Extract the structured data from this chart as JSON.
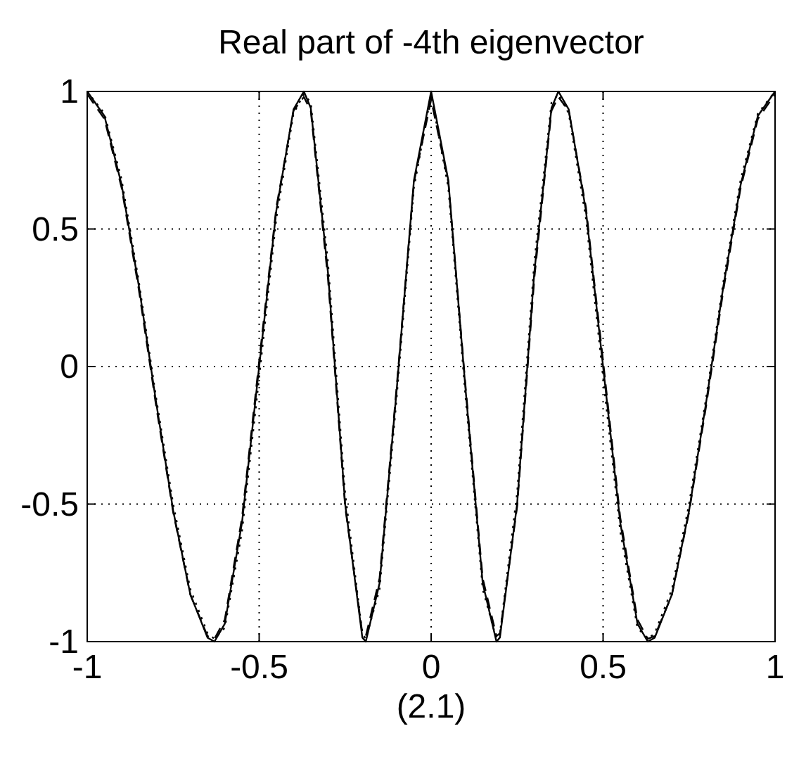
{
  "chart_data": {
    "type": "line",
    "title": "Real part of -4th eigenvector",
    "xlabel": "(2.1)",
    "x": [
      -1,
      -0.95,
      -0.9,
      -0.85,
      -0.8,
      -0.75,
      -0.7,
      -0.65,
      -0.63,
      -0.6,
      -0.55,
      -0.5,
      -0.45,
      -0.4,
      -0.37,
      -0.35,
      -0.3,
      -0.25,
      -0.2,
      -0.19,
      -0.15,
      -0.1,
      -0.05,
      0,
      0.05,
      0.1,
      0.15,
      0.19,
      0.2,
      0.25,
      0.3,
      0.35,
      0.37,
      0.4,
      0.45,
      0.5,
      0.55,
      0.6,
      0.63,
      0.65,
      0.7,
      0.75,
      0.8,
      0.85,
      0.9,
      0.95,
      1
    ],
    "series": [
      {
        "color": "#000000",
        "line_style": "solid",
        "values": [
          1,
          0.911,
          0.661,
          0.294,
          -0.127,
          -0.524,
          -0.829,
          -0.986,
          -1,
          -0.935,
          -0.568,
          0,
          0.568,
          0.935,
          1,
          0.94,
          0.342,
          -0.5,
          -0.985,
          -1,
          -0.788,
          -0.082,
          0.677,
          1,
          0.677,
          -0.082,
          -0.788,
          -1,
          -0.985,
          -0.5,
          0.342,
          0.94,
          1,
          0.935,
          0.568,
          0,
          -0.568,
          -0.935,
          -1,
          -0.986,
          -0.829,
          -0.524,
          -0.127,
          0.294,
          0.661,
          0.911,
          1
        ]
      },
      {
        "color": "#000000",
        "line_style": "dashed",
        "values": [
          0.99,
          0.9,
          0.65,
          0.28,
          -0.14,
          -0.53,
          -0.83,
          -0.98,
          -0.99,
          -0.92,
          -0.55,
          0.02,
          0.58,
          0.93,
          0.98,
          0.93,
          0.32,
          -0.51,
          -0.97,
          -0.98,
          -0.77,
          -0.07,
          0.67,
          0.97,
          0.67,
          -0.07,
          -0.77,
          -0.98,
          -0.97,
          -0.51,
          0.32,
          0.93,
          0.98,
          0.93,
          0.58,
          0.02,
          -0.55,
          -0.92,
          -0.99,
          -0.98,
          -0.83,
          -0.53,
          -0.14,
          0.28,
          0.65,
          0.9,
          0.99
        ]
      },
      {
        "color": "#000000",
        "line_style": "dotted",
        "values": [
          1,
          0.92,
          0.68,
          0.31,
          -0.11,
          -0.5,
          -0.81,
          -0.97,
          -0.99,
          -0.95,
          -0.6,
          -0.04,
          0.54,
          0.92,
          0.99,
          0.96,
          0.38,
          -0.46,
          -0.97,
          -0.99,
          -0.81,
          -0.11,
          0.65,
          0.99,
          0.65,
          -0.11,
          -0.81,
          -0.99,
          -0.97,
          -0.46,
          0.38,
          0.96,
          0.99,
          0.92,
          0.54,
          -0.04,
          -0.6,
          -0.95,
          -0.99,
          -0.97,
          -0.81,
          -0.5,
          -0.11,
          0.31,
          0.68,
          0.92,
          1
        ]
      }
    ],
    "xlim": [
      -1,
      1
    ],
    "ylim": [
      -1,
      1
    ],
    "xticks": [
      -1,
      -0.5,
      0,
      0.5,
      1
    ],
    "yticks": [
      -1,
      -0.5,
      0,
      0.5,
      1
    ],
    "grid": true,
    "marker": "none"
  }
}
